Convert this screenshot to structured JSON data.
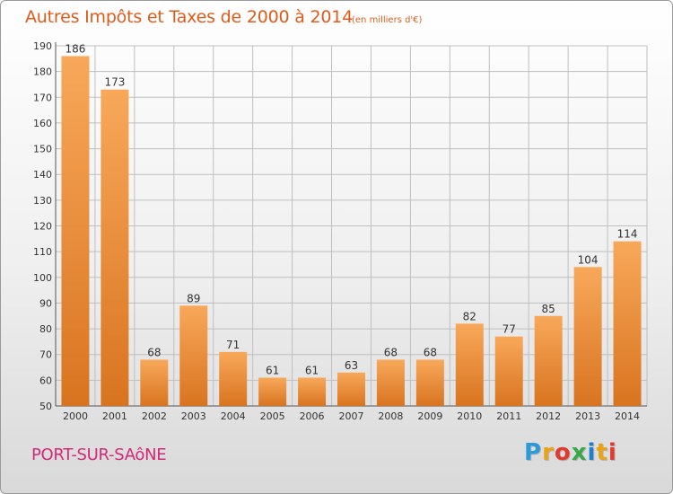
{
  "header": {
    "title": "Autres Impôts et Taxes de 2000 à 2014",
    "unit": "(en milliers d'€)"
  },
  "footer": {
    "town": "PORT-SUR-SAôNE",
    "logo": "Proxiti"
  },
  "colors": {
    "title": "#e05a1a",
    "town": "#d6287a",
    "bar_light": "#f8a85a",
    "bar_dark": "#d87420",
    "grid": "#bfbfbf"
  },
  "chart_data": {
    "type": "bar",
    "title": "Autres Impôts et Taxes de 2000 à 2014",
    "subtitle": "(en milliers d'€)",
    "xlabel": "",
    "ylabel": "",
    "categories": [
      "2000",
      "2001",
      "2002",
      "2003",
      "2004",
      "2005",
      "2006",
      "2007",
      "2008",
      "2009",
      "2010",
      "2011",
      "2012",
      "2013",
      "2014"
    ],
    "values": [
      186,
      173,
      68,
      89,
      71,
      61,
      61,
      63,
      68,
      68,
      82,
      77,
      85,
      104,
      114
    ],
    "ylim": [
      50,
      190
    ],
    "yticks": [
      50,
      60,
      70,
      80,
      90,
      100,
      110,
      120,
      130,
      140,
      150,
      160,
      170,
      180,
      190
    ],
    "grid": true,
    "data_labels": true
  }
}
